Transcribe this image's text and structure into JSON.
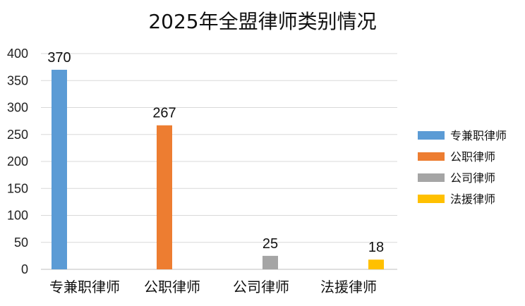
{
  "chart_data": {
    "type": "bar",
    "title": "2025年全盟律师类别情况",
    "categories": [
      "专兼职律师",
      "公职律师",
      "公司律师",
      "法援律师"
    ],
    "values": [
      370,
      267,
      25,
      18
    ],
    "data_labels": [
      "370",
      "267",
      "25",
      "18"
    ],
    "series": [
      {
        "name": "专兼职律师",
        "color": "#5B9BD5",
        "category": "专兼职律师",
        "value": 370
      },
      {
        "name": "公职律师",
        "color": "#ED7D31",
        "category": "公职律师",
        "value": 267
      },
      {
        "name": "公司律师",
        "color": "#A5A5A5",
        "category": "公司律师",
        "value": 25
      },
      {
        "name": "法援律师",
        "color": "#FFC000",
        "category": "法援律师",
        "value": 18
      }
    ],
    "y_ticks": [
      0,
      50,
      100,
      150,
      200,
      250,
      300,
      350,
      400
    ],
    "ylim": [
      0,
      400
    ],
    "xlabel": "",
    "ylabel": "",
    "grid": true,
    "legend_position": "right"
  }
}
